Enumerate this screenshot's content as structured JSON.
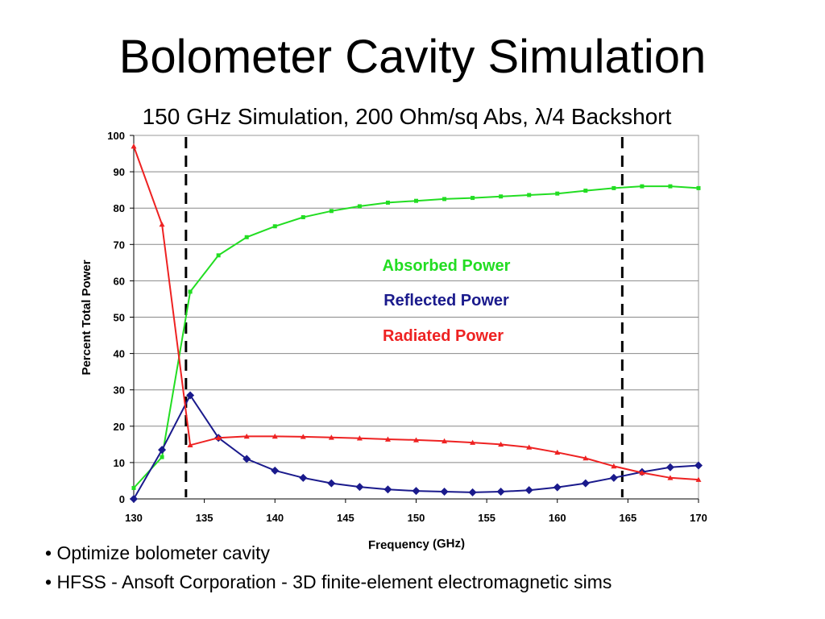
{
  "slide": {
    "title": "Bolometer Cavity Simulation",
    "subtitle": "150 GHz Simulation, 200 Ohm/sq Abs, λ/4 Backshort",
    "bullets": [
      "• Optimize bolometer cavity",
      "• HFSS - Ansoft Corporation - 3D finite-element electromagnetic sims"
    ]
  },
  "chart_data": {
    "type": "line",
    "title": "",
    "xlabel": "Frequency (GHz)",
    "ylabel": "Percent Total Power",
    "xlim": [
      130,
      170
    ],
    "ylim": [
      0,
      100
    ],
    "xticks": [
      130,
      135,
      140,
      145,
      150,
      155,
      160,
      165,
      170
    ],
    "yticks": [
      0,
      10,
      20,
      30,
      40,
      50,
      60,
      70,
      80,
      90,
      100
    ],
    "grid": "horizontal",
    "legend_placement": "center-right (inline labels)",
    "series": [
      {
        "name": "Absorbed Power",
        "color": "#22dd22",
        "marker": "square",
        "x": [
          130,
          132,
          134,
          136,
          138,
          140,
          142,
          144,
          146,
          148,
          150,
          152,
          154,
          156,
          158,
          160,
          162,
          164,
          166,
          168,
          170
        ],
        "y": [
          3,
          11.5,
          57,
          67,
          72,
          75,
          77.5,
          79.2,
          80.5,
          81.5,
          82,
          82.5,
          82.8,
          83.2,
          83.6,
          84,
          84.8,
          85.5,
          86,
          86,
          85.5
        ]
      },
      {
        "name": "Reflected Power",
        "color": "#1a1a8c",
        "marker": "diamond",
        "x": [
          130,
          132,
          134,
          136,
          138,
          140,
          142,
          144,
          146,
          148,
          150,
          152,
          154,
          156,
          158,
          160,
          162,
          164,
          166,
          168,
          170
        ],
        "y": [
          0,
          13.5,
          28.5,
          16.8,
          11,
          7.8,
          5.8,
          4.3,
          3.3,
          2.6,
          2.2,
          2,
          1.8,
          2,
          2.4,
          3.2,
          4.3,
          5.8,
          7.4,
          8.7,
          9.2
        ]
      },
      {
        "name": "Radiated Power",
        "color": "#ee2222",
        "marker": "triangle",
        "x": [
          130,
          132,
          134,
          136,
          138,
          140,
          142,
          144,
          146,
          148,
          150,
          152,
          154,
          156,
          158,
          160,
          162,
          164,
          166,
          168,
          170
        ],
        "y": [
          97,
          75.5,
          14.8,
          16.8,
          17.2,
          17.2,
          17.1,
          16.9,
          16.7,
          16.4,
          16.2,
          15.9,
          15.5,
          15,
          14.2,
          12.8,
          11.2,
          9,
          7.2,
          5.8,
          5.3
        ]
      }
    ],
    "annotations": [
      {
        "type": "vertical-dashed-line",
        "x": 133.7
      },
      {
        "type": "vertical-dashed-line",
        "x": 164.6
      }
    ]
  }
}
